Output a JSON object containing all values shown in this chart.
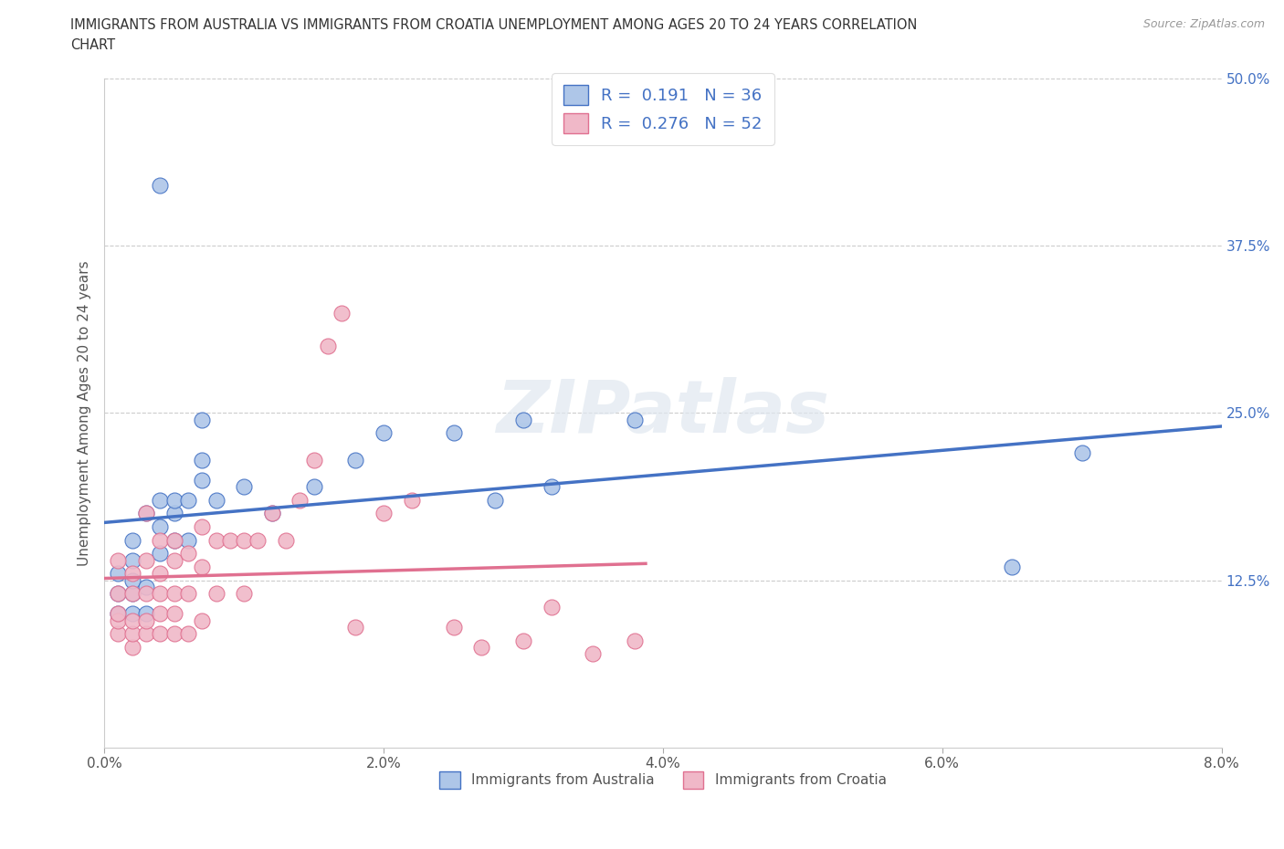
{
  "title_line1": "IMMIGRANTS FROM AUSTRALIA VS IMMIGRANTS FROM CROATIA UNEMPLOYMENT AMONG AGES 20 TO 24 YEARS CORRELATION",
  "title_line2": "CHART",
  "source": "Source: ZipAtlas.com",
  "ylabel": "Unemployment Among Ages 20 to 24 years",
  "r_australia": 0.191,
  "n_australia": 36,
  "r_croatia": 0.276,
  "n_croatia": 52,
  "xlim": [
    0.0,
    0.08
  ],
  "ylim": [
    0.0,
    0.5
  ],
  "xticks": [
    0.0,
    0.02,
    0.04,
    0.06,
    0.08
  ],
  "xticklabels": [
    "0.0%",
    "2.0%",
    "4.0%",
    "6.0%",
    "8.0%"
  ],
  "yticks": [
    0.125,
    0.25,
    0.375,
    0.5
  ],
  "yticklabels": [
    "12.5%",
    "25.0%",
    "37.5%",
    "50.0%"
  ],
  "color_australia": "#aec6e8",
  "color_croatia": "#f0b8c8",
  "line_color_australia": "#4472c4",
  "line_color_croatia": "#e07090",
  "background_color": "#ffffff",
  "australia_x": [
    0.001,
    0.001,
    0.001,
    0.002,
    0.002,
    0.002,
    0.002,
    0.002,
    0.003,
    0.003,
    0.003,
    0.004,
    0.004,
    0.004,
    0.004,
    0.005,
    0.005,
    0.005,
    0.006,
    0.006,
    0.007,
    0.007,
    0.007,
    0.008,
    0.01,
    0.012,
    0.015,
    0.018,
    0.02,
    0.025,
    0.028,
    0.03,
    0.032,
    0.038,
    0.065,
    0.07
  ],
  "australia_y": [
    0.1,
    0.115,
    0.13,
    0.1,
    0.115,
    0.125,
    0.14,
    0.155,
    0.1,
    0.12,
    0.175,
    0.145,
    0.165,
    0.185,
    0.42,
    0.155,
    0.175,
    0.185,
    0.155,
    0.185,
    0.2,
    0.215,
    0.245,
    0.185,
    0.195,
    0.175,
    0.195,
    0.215,
    0.235,
    0.235,
    0.185,
    0.245,
    0.195,
    0.245,
    0.135,
    0.22
  ],
  "croatia_x": [
    0.001,
    0.001,
    0.001,
    0.001,
    0.001,
    0.002,
    0.002,
    0.002,
    0.002,
    0.002,
    0.003,
    0.003,
    0.003,
    0.003,
    0.003,
    0.004,
    0.004,
    0.004,
    0.004,
    0.004,
    0.005,
    0.005,
    0.005,
    0.005,
    0.005,
    0.006,
    0.006,
    0.006,
    0.007,
    0.007,
    0.007,
    0.008,
    0.008,
    0.009,
    0.01,
    0.01,
    0.011,
    0.012,
    0.013,
    0.014,
    0.015,
    0.016,
    0.017,
    0.018,
    0.02,
    0.022,
    0.025,
    0.027,
    0.03,
    0.032,
    0.035,
    0.038
  ],
  "croatia_y": [
    0.085,
    0.095,
    0.1,
    0.115,
    0.14,
    0.075,
    0.085,
    0.095,
    0.115,
    0.13,
    0.085,
    0.095,
    0.115,
    0.14,
    0.175,
    0.085,
    0.1,
    0.115,
    0.13,
    0.155,
    0.085,
    0.1,
    0.115,
    0.14,
    0.155,
    0.085,
    0.115,
    0.145,
    0.095,
    0.135,
    0.165,
    0.115,
    0.155,
    0.155,
    0.115,
    0.155,
    0.155,
    0.175,
    0.155,
    0.185,
    0.215,
    0.3,
    0.325,
    0.09,
    0.175,
    0.185,
    0.09,
    0.075,
    0.08,
    0.105,
    0.07,
    0.08
  ]
}
